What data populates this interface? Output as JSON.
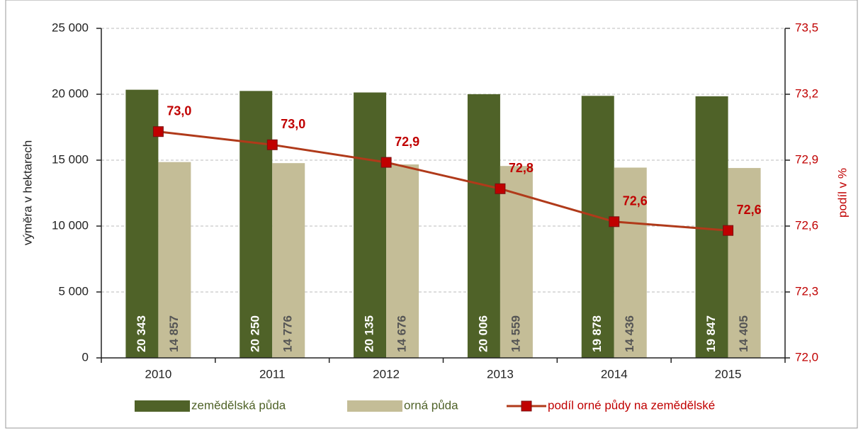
{
  "chart_data": {
    "type": "bar",
    "categories": [
      "2010",
      "2011",
      "2012",
      "2013",
      "2014",
      "2015"
    ],
    "series": [
      {
        "name": "zemědělská půda",
        "color": "#4f6228",
        "values": [
          20343,
          20250,
          20135,
          20006,
          19878,
          19847
        ],
        "value_labels": [
          "20 343",
          "20 250",
          "20 135",
          "20 006",
          "19 878",
          "19 847"
        ]
      },
      {
        "name": "orná půda",
        "color": "#c4bd97",
        "values": [
          14857,
          14776,
          14676,
          14559,
          14436,
          14405
        ],
        "value_labels": [
          "14 857",
          "14 776",
          "14 676",
          "14 559",
          "14 436",
          "14 405"
        ]
      },
      {
        "name": "podíl orné půdy na zemědělské",
        "type": "line",
        "axis": "y2",
        "color": "#c00000",
        "line_color": "#b03a1a",
        "values": [
          73.03,
          72.97,
          72.89,
          72.77,
          72.62,
          72.58
        ],
        "value_labels": [
          "73,0",
          "73,0",
          "72,9",
          "72,8",
          "72,6",
          "72,6"
        ]
      }
    ],
    "ylabel": "výměra v hektarech",
    "y2label": "podíl v %",
    "ylim": [
      0,
      25000
    ],
    "yticks": [
      0,
      {
        "value": 5000,
        "label": "5 000"
      },
      {
        "value": 10000,
        "label": "10 000"
      },
      {
        "value": 15000,
        "label": "15 000"
      },
      {
        "value": 20000,
        "label": "20 000"
      },
      {
        "value": 25000,
        "label": "25 000"
      }
    ],
    "y2lim": [
      72.0,
      73.5
    ],
    "y2ticks": [
      {
        "value": 72.0,
        "label": "72,0"
      },
      {
        "value": 72.3,
        "label": "72,3"
      },
      {
        "value": 72.6,
        "label": "72,6"
      },
      {
        "value": 72.9,
        "label": "72,9"
      },
      {
        "value": 73.2,
        "label": "73,2"
      },
      {
        "value": 73.5,
        "label": "73,5"
      }
    ],
    "grid": true,
    "legend": "bottom"
  }
}
